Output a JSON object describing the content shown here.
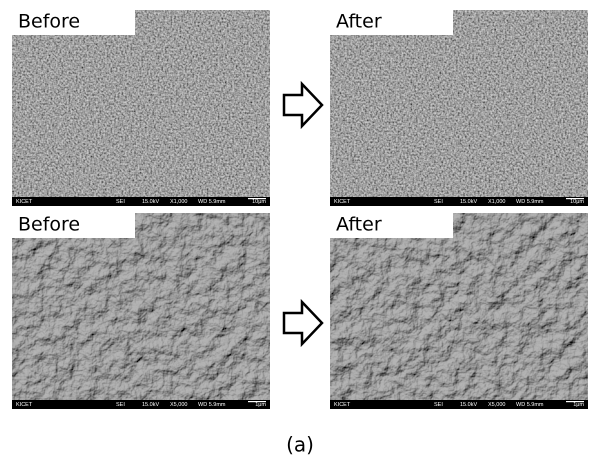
{
  "panels": [
    {
      "label": "Before",
      "info": {
        "source": "KICET",
        "mode": "SEI",
        "voltage": "15.0kV",
        "magnification": "X1,000",
        "wd": "WD 5.9mm",
        "scale": "10μm"
      }
    },
    {
      "label": "After",
      "info": {
        "source": "KICET",
        "mode": "SEI",
        "voltage": "15.0kV",
        "magnification": "X1,000",
        "wd": "WD 5.9mm",
        "scale": "10μm"
      }
    },
    {
      "label": "Before",
      "info": {
        "source": "KICET",
        "mode": "SEI",
        "voltage": "15.0kV",
        "magnification": "X5,000",
        "wd": "WD 5.9mm",
        "scale": "1μm"
      }
    },
    {
      "label": "After",
      "info": {
        "source": "KICET",
        "mode": "SEI",
        "voltage": "15.0kV",
        "magnification": "X5,000",
        "wd": "WD 5.9mm",
        "scale": "1μm"
      }
    }
  ],
  "caption": "(a)"
}
